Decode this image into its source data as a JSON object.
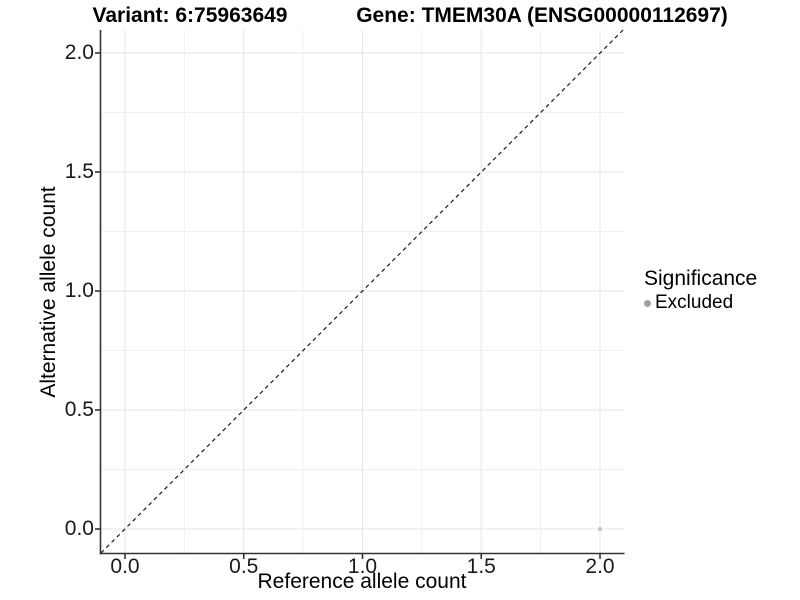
{
  "header": {
    "title_left": "Variant: 6:75963649",
    "title_right": "Gene: TMEM30A (ENSG00000112697)"
  },
  "chart_data": {
    "type": "scatter",
    "title_left": "Variant: 6:75963649",
    "title_right": "Gene: TMEM30A (ENSG00000112697)",
    "xlabel": "Reference allele count",
    "ylabel": "Alternative allele count",
    "xlim": [
      -0.1,
      2.1
    ],
    "ylim": [
      -0.1,
      2.1
    ],
    "x_tick_values": [
      0.0,
      0.5,
      1.0,
      1.5,
      2.0
    ],
    "x_tick_labels": [
      "0.0",
      "0.5",
      "1.0",
      "1.5",
      "2.0"
    ],
    "y_tick_values": [
      0.0,
      0.5,
      1.0,
      1.5,
      2.0
    ],
    "y_tick_labels": [
      "0.0",
      "0.5",
      "1.0",
      "1.5",
      "2.0"
    ],
    "minor_tick_step": 0.25,
    "grid": true,
    "reference_line": {
      "kind": "diagonal",
      "equation": "y = x",
      "style": "dashed",
      "color": "#1a1a1a"
    },
    "points": [
      {
        "x": 2.0,
        "y": 0.0,
        "series": "Excluded",
        "color": "#c3c3c3",
        "radius": 2
      }
    ],
    "legend": {
      "title": "Significance",
      "position": "right",
      "items": [
        {
          "label": "Excluded",
          "color": "#a0a0a0"
        }
      ]
    },
    "colors": {
      "grid_major": "#e4e4e4",
      "grid_minor": "#f0f0f0",
      "axis_line": "#333333",
      "panel_background": "#ffffff"
    }
  }
}
